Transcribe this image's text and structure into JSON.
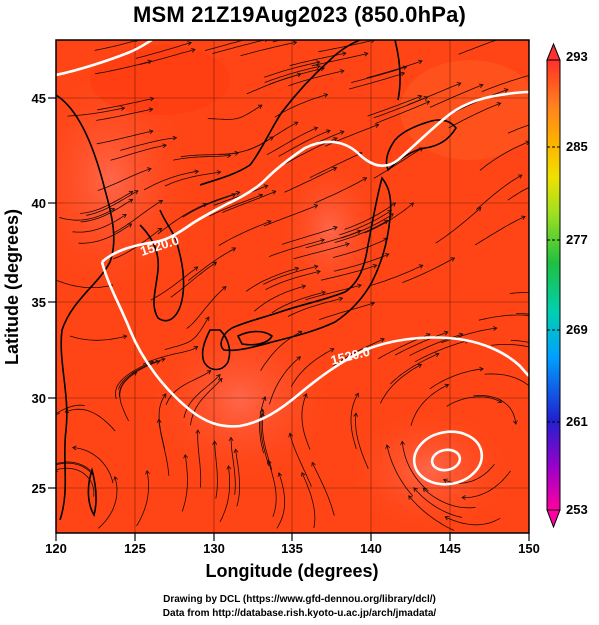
{
  "title": "MSM 21Z19Aug2023 (850.0hPa)",
  "x_axis": {
    "label": "Longitude (degrees)",
    "ticks": [
      "120",
      "125",
      "130",
      "135",
      "140",
      "145",
      "150"
    ]
  },
  "y_axis": {
    "label": "Latitude  (degrees)",
    "ticks": [
      "25",
      "30",
      "35",
      "40",
      "45"
    ]
  },
  "colorbar": {
    "ticks": [
      "293",
      "285",
      "277",
      "269",
      "261",
      "253"
    ],
    "colors": [
      "#ff00a0",
      "#a000c8",
      "#2020d0",
      "#00a0ff",
      "#00d0b0",
      "#20c040",
      "#a0e020",
      "#f0e000",
      "#ffb000",
      "#ff8020",
      "#ff5020",
      "#ff3030"
    ]
  },
  "contour_labels": [
    "1520.0",
    "1520.0"
  ],
  "credits": {
    "line1": "Drawing by DCL (https://www.gfd-dennou.org/library/dcl/)",
    "line2": "Data from http://database.rish.kyoto-u.ac.jp/arch/jmadata/"
  },
  "map_data": {
    "lon_range": [
      120,
      150
    ],
    "lat_range": [
      22.5,
      47.8
    ],
    "field": "temperature (K) at 850.0hPa with streamlines and geopotential height contour",
    "color_range": [
      253,
      293
    ]
  }
}
